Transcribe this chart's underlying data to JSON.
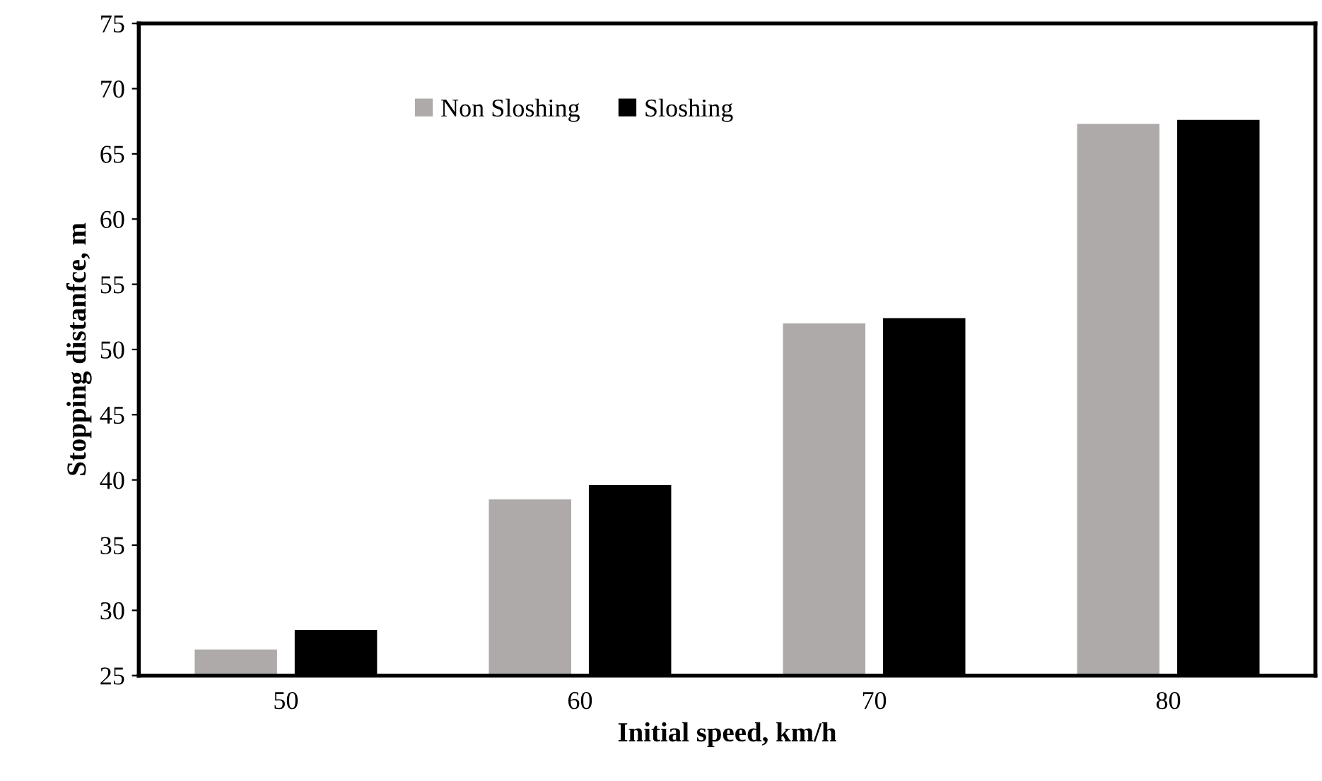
{
  "chart_data": {
    "type": "bar",
    "xlabel": "Initial speed, km/h",
    "ylabel": "Stopping distanfce, m",
    "categories": [
      "50",
      "60",
      "70",
      "80"
    ],
    "series": [
      {
        "name": "Non Sloshing",
        "color": "#aeaaaa",
        "values": [
          27.0,
          38.5,
          52.0,
          67.3
        ]
      },
      {
        "name": "Sloshing",
        "color": "#000000",
        "values": [
          28.5,
          39.6,
          52.4,
          67.6
        ]
      }
    ],
    "ylim": [
      25,
      75
    ],
    "yticks": [
      25,
      30,
      35,
      40,
      45,
      50,
      55,
      60,
      65,
      70,
      75
    ],
    "grid": false,
    "legend": "top"
  }
}
